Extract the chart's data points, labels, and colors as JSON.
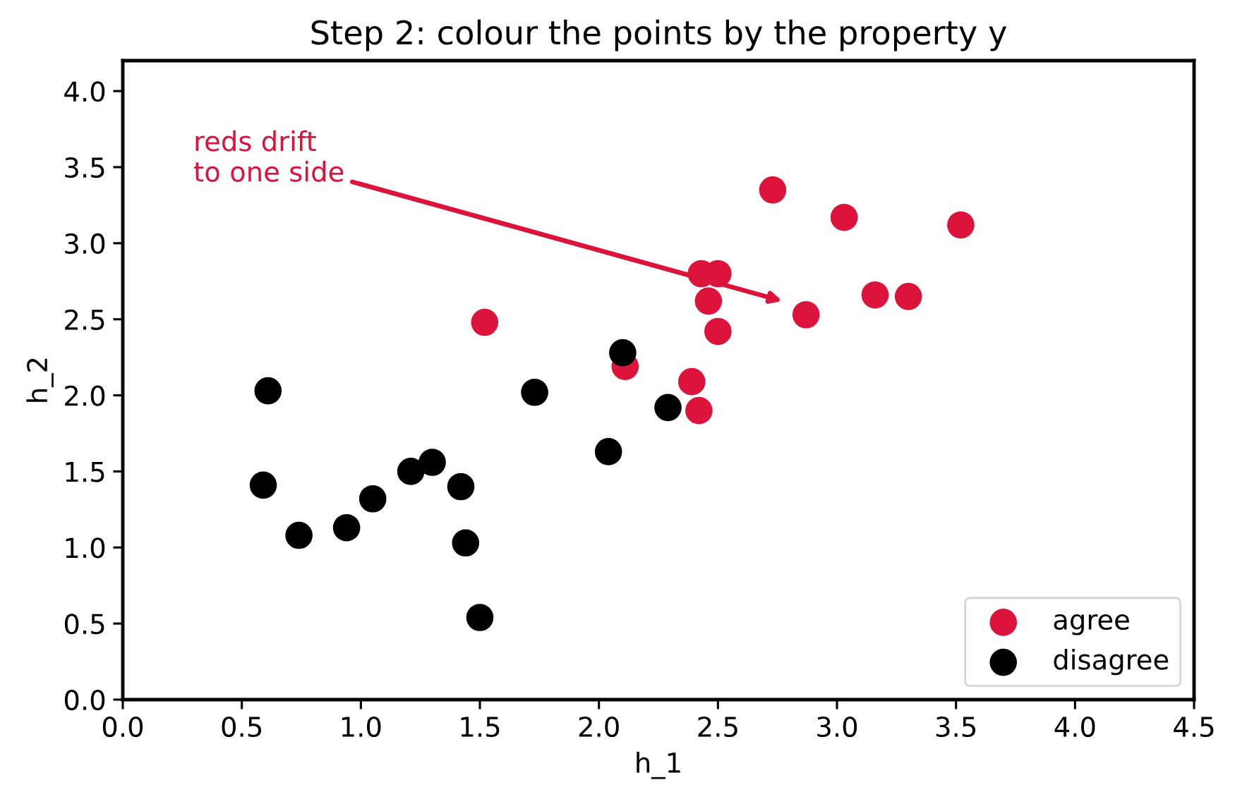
{
  "chart_data": {
    "type": "scatter",
    "title": "Step 2: colour the points by the property y",
    "xlabel": "h_1",
    "ylabel": "h_2",
    "xlim": [
      0,
      4.5
    ],
    "ylim": [
      0,
      4.2
    ],
    "xticks": [
      {
        "value": 0,
        "label": "0.0"
      },
      0.5,
      {
        "value": 1,
        "label": "1.0"
      },
      1.5,
      {
        "value": 2,
        "label": "2.0"
      },
      2.5,
      {
        "value": 3,
        "label": "3.0"
      },
      3.5,
      {
        "value": 4,
        "label": "4.0"
      },
      4.5
    ],
    "yticks": [
      {
        "value": 0,
        "label": "0.0"
      },
      0.5,
      {
        "value": 1,
        "label": "1.0"
      },
      1.5,
      {
        "value": 2,
        "label": "2.0"
      },
      2.5,
      {
        "value": 3,
        "label": "3.0"
      },
      3.5,
      {
        "value": 4,
        "label": "4.0"
      }
    ],
    "grid": false,
    "legend": "bottom right",
    "marker": "circle",
    "series": [
      {
        "name": "agree",
        "color": "#dc143c",
        "x": [
          1.52,
          2.11,
          2.39,
          2.42,
          2.73,
          3.03,
          3.52,
          2.43,
          2.5,
          2.46,
          2.5,
          2.87,
          3.16,
          3.3
        ],
        "values": [
          2.48,
          2.19,
          2.09,
          1.9,
          3.35,
          3.17,
          3.12,
          2.8,
          2.8,
          2.62,
          2.42,
          2.53,
          2.66,
          2.65
        ]
      },
      {
        "name": "disagree",
        "color": "#000000",
        "x": [
          0.61,
          0.59,
          0.74,
          0.94,
          1.05,
          1.21,
          1.3,
          1.42,
          1.44,
          1.5,
          1.73,
          2.04,
          2.1,
          2.29
        ],
        "values": [
          2.03,
          1.41,
          1.08,
          1.13,
          1.32,
          1.5,
          1.56,
          1.4,
          1.03,
          0.54,
          2.02,
          1.63,
          2.28,
          1.92
        ]
      }
    ],
    "annotations": [
      "reds drift\nto one side"
    ]
  }
}
